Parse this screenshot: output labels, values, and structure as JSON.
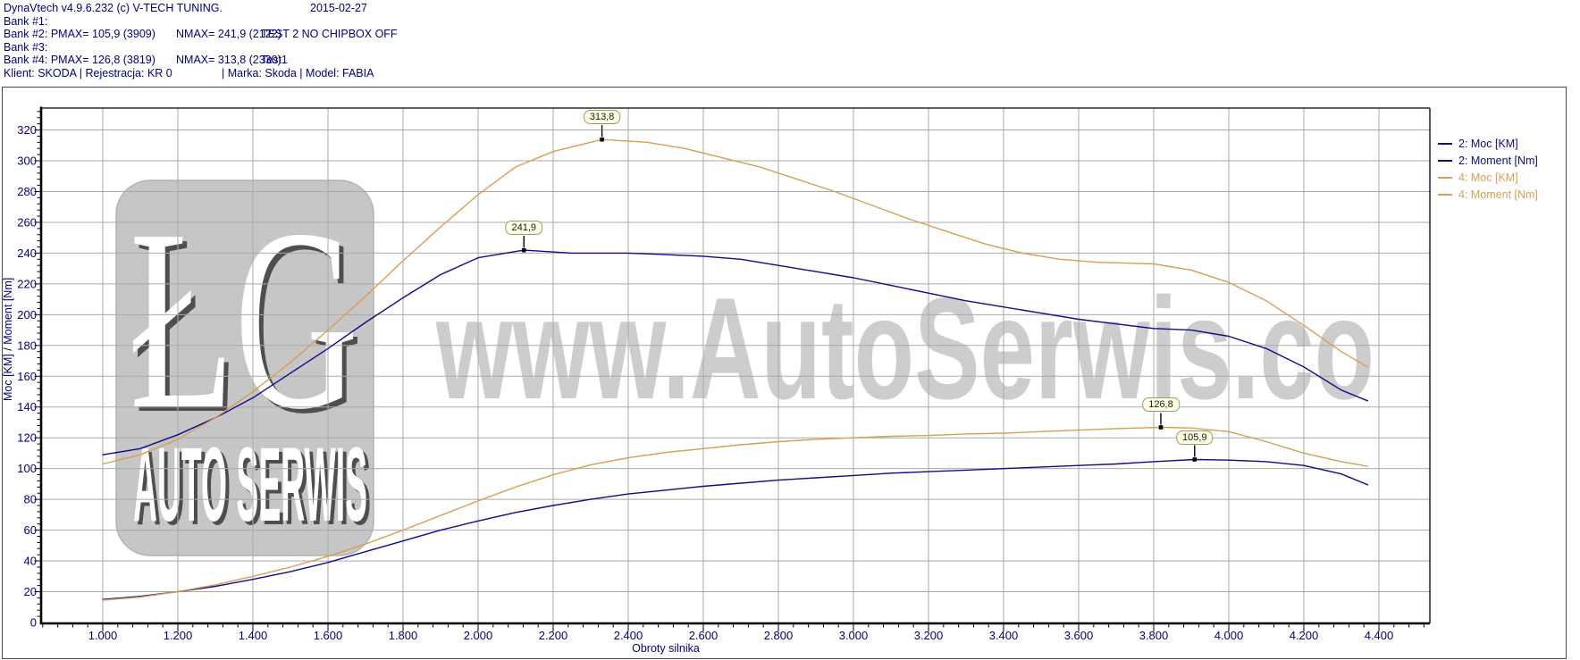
{
  "header": {
    "rows": [
      {
        "segments": [
          {
            "text": "DynaVtech v4.9.6.232 (c) V-TECH TUNING.",
            "x": 4
          },
          {
            "text": "2015-02-27",
            "x": 347
          }
        ]
      },
      {
        "segments": [
          {
            "text": "Bank #1:",
            "x": 4
          }
        ]
      },
      {
        "segments": [
          {
            "text": "Bank #2: PMAX= 105,9 (3909)",
            "x": 4
          },
          {
            "text": "NMAX= 241,9 (2122)",
            "x": 197
          },
          {
            "text": "TEST 2 NO CHIPBOX OFF",
            "x": 292
          }
        ]
      },
      {
        "segments": [
          {
            "text": "Bank #3:",
            "x": 4
          }
        ]
      },
      {
        "segments": [
          {
            "text": "Bank #4: PMAX= 126,8 (3819)",
            "x": 4
          },
          {
            "text": "NMAX= 313,8 (2330)",
            "x": 197
          },
          {
            "text": "Test1",
            "x": 292
          }
        ]
      },
      {
        "segments": [
          {
            "text": "Klient: SKODA | Rejestracja: KR 0",
            "x": 4
          },
          {
            "text": "| Marka: Skoda | Model: FABIA",
            "x": 248
          }
        ]
      }
    ]
  },
  "axes": {
    "x_title": "Obroty silnika",
    "y_title": "Moc [KM] / Moment [Nm]"
  },
  "legend": {
    "items": [
      {
        "label": "2: Moc [KM]",
        "color": "#0d0d8c"
      },
      {
        "label": "2: Moment [Nm]",
        "color": "#0d0d8c"
      },
      {
        "label": "4: Moc [KM]",
        "color": "#d89e54"
      },
      {
        "label": "4: Moment [Nm]",
        "color": "#d89e54"
      }
    ]
  },
  "watermark": {
    "text": "www.AutoSerwis.co",
    "logo_initials": "ŁG",
    "logo_caption": "AUTO SERWIS"
  },
  "colors": {
    "axis_text": "#000080",
    "grid": "#a9a9a9",
    "curve_blue": "#0d0d8c",
    "curve_orange": "#d89e54",
    "annotation_bg": "#ffffe3",
    "watermark_gray": "#cdcdcd",
    "logo_gray": "#c6c6c6"
  },
  "chart_data": {
    "type": "line",
    "title": "",
    "xlabel": "Obroty silnika",
    "ylabel": "Moc [KM] / Moment [Nm]",
    "xlim": [
      836,
      4536
    ],
    "ylim": [
      0,
      334
    ],
    "grid": true,
    "legend_position": "right-outside",
    "x_minor_step": 40,
    "y_minor_step": 4,
    "x_ticks": [
      {
        "v": 1000,
        "label": "1.000"
      },
      {
        "v": 1200,
        "label": "1.200"
      },
      {
        "v": 1400,
        "label": "1.400"
      },
      {
        "v": 1600,
        "label": "1.600"
      },
      {
        "v": 1800,
        "label": "1.800"
      },
      {
        "v": 2000,
        "label": "2.000"
      },
      {
        "v": 2200,
        "label": "2.200"
      },
      {
        "v": 2400,
        "label": "2.400"
      },
      {
        "v": 2600,
        "label": "2.600"
      },
      {
        "v": 2800,
        "label": "2.800"
      },
      {
        "v": 3000,
        "label": "3.000"
      },
      {
        "v": 3200,
        "label": "3.200"
      },
      {
        "v": 3400,
        "label": "3.400"
      },
      {
        "v": 3600,
        "label": "3.600"
      },
      {
        "v": 3800,
        "label": "3.800"
      },
      {
        "v": 4000,
        "label": "4.000"
      },
      {
        "v": 4200,
        "label": "4.200"
      },
      {
        "v": 4400,
        "label": "4.400"
      }
    ],
    "y_ticks": [
      {
        "v": 0,
        "label": "0"
      },
      {
        "v": 20,
        "label": "20"
      },
      {
        "v": 40,
        "label": "40"
      },
      {
        "v": 60,
        "label": "60"
      },
      {
        "v": 80,
        "label": "80"
      },
      {
        "v": 100,
        "label": "100"
      },
      {
        "v": 120,
        "label": "120"
      },
      {
        "v": 140,
        "label": "140"
      },
      {
        "v": 160,
        "label": "160"
      },
      {
        "v": 180,
        "label": "180"
      },
      {
        "v": 200,
        "label": "200"
      },
      {
        "v": 220,
        "label": "220"
      },
      {
        "v": 240,
        "label": "240"
      },
      {
        "v": 260,
        "label": "260"
      },
      {
        "v": 280,
        "label": "280"
      },
      {
        "v": 300,
        "label": "300"
      },
      {
        "v": 320,
        "label": "320"
      }
    ],
    "series": [
      {
        "id": "moment2",
        "name": "2: Moment [Nm]",
        "color": "#0d0d8c",
        "points": [
          [
            1000,
            109
          ],
          [
            1100,
            113
          ],
          [
            1200,
            122
          ],
          [
            1300,
            133
          ],
          [
            1400,
            146
          ],
          [
            1500,
            162
          ],
          [
            1600,
            178
          ],
          [
            1700,
            195
          ],
          [
            1800,
            211
          ],
          [
            1900,
            226
          ],
          [
            2000,
            237
          ],
          [
            2122,
            241.9
          ],
          [
            2250,
            240
          ],
          [
            2400,
            240
          ],
          [
            2500,
            239
          ],
          [
            2600,
            238
          ],
          [
            2700,
            236
          ],
          [
            2800,
            232
          ],
          [
            2900,
            228
          ],
          [
            3000,
            224
          ],
          [
            3100,
            219
          ],
          [
            3200,
            214
          ],
          [
            3300,
            209
          ],
          [
            3400,
            205
          ],
          [
            3500,
            201
          ],
          [
            3600,
            197
          ],
          [
            3700,
            194
          ],
          [
            3800,
            191
          ],
          [
            3900,
            190
          ],
          [
            4000,
            186
          ],
          [
            4100,
            178
          ],
          [
            4200,
            166
          ],
          [
            4300,
            151
          ],
          [
            4370,
            144
          ]
        ]
      },
      {
        "id": "moment4",
        "name": "4: Moment [Nm]",
        "color": "#d89e54",
        "points": [
          [
            1000,
            103
          ],
          [
            1100,
            109
          ],
          [
            1200,
            119
          ],
          [
            1300,
            133
          ],
          [
            1400,
            150
          ],
          [
            1500,
            169
          ],
          [
            1600,
            190
          ],
          [
            1700,
            212
          ],
          [
            1800,
            235
          ],
          [
            1900,
            257
          ],
          [
            2000,
            278
          ],
          [
            2100,
            296
          ],
          [
            2200,
            306
          ],
          [
            2330,
            313.8
          ],
          [
            2450,
            312
          ],
          [
            2550,
            308
          ],
          [
            2650,
            302
          ],
          [
            2750,
            296
          ],
          [
            2850,
            288
          ],
          [
            2950,
            280
          ],
          [
            3050,
            271
          ],
          [
            3150,
            262
          ],
          [
            3250,
            254
          ],
          [
            3350,
            246
          ],
          [
            3450,
            240
          ],
          [
            3550,
            236
          ],
          [
            3650,
            234
          ],
          [
            3800,
            233
          ],
          [
            3900,
            229
          ],
          [
            4000,
            221
          ],
          [
            4100,
            209
          ],
          [
            4200,
            193
          ],
          [
            4300,
            176
          ],
          [
            4370,
            166
          ]
        ]
      },
      {
        "id": "moc2",
        "name": "2: Moc [KM]",
        "color": "#0d0d8c",
        "points": [
          [
            1000,
            15
          ],
          [
            1100,
            17
          ],
          [
            1200,
            20
          ],
          [
            1300,
            23.5
          ],
          [
            1400,
            28
          ],
          [
            1500,
            33
          ],
          [
            1600,
            39
          ],
          [
            1700,
            46
          ],
          [
            1800,
            53
          ],
          [
            1900,
            60
          ],
          [
            2000,
            66
          ],
          [
            2100,
            71.5
          ],
          [
            2200,
            76
          ],
          [
            2300,
            80
          ],
          [
            2400,
            83.5
          ],
          [
            2500,
            86
          ],
          [
            2600,
            88.5
          ],
          [
            2700,
            90.5
          ],
          [
            2800,
            92.5
          ],
          [
            2900,
            94
          ],
          [
            3000,
            95.5
          ],
          [
            3100,
            97
          ],
          [
            3200,
            98
          ],
          [
            3300,
            99
          ],
          [
            3400,
            100
          ],
          [
            3500,
            101
          ],
          [
            3600,
            102
          ],
          [
            3700,
            103
          ],
          [
            3800,
            104.5
          ],
          [
            3909,
            105.9
          ],
          [
            4000,
            105.5
          ],
          [
            4100,
            104.5
          ],
          [
            4200,
            102
          ],
          [
            4300,
            96.5
          ],
          [
            4370,
            89.5
          ]
        ]
      },
      {
        "id": "moc4",
        "name": "4: Moc [KM]",
        "color": "#d89e54",
        "points": [
          [
            1000,
            14.5
          ],
          [
            1100,
            16.5
          ],
          [
            1200,
            20
          ],
          [
            1300,
            24.5
          ],
          [
            1400,
            30
          ],
          [
            1500,
            36
          ],
          [
            1600,
            43
          ],
          [
            1700,
            51
          ],
          [
            1800,
            60
          ],
          [
            1900,
            69.5
          ],
          [
            2000,
            79
          ],
          [
            2100,
            88
          ],
          [
            2200,
            96
          ],
          [
            2300,
            102.5
          ],
          [
            2400,
            107
          ],
          [
            2500,
            110.5
          ],
          [
            2600,
            113
          ],
          [
            2700,
            115.5
          ],
          [
            2800,
            117.5
          ],
          [
            2900,
            119
          ],
          [
            3000,
            120
          ],
          [
            3100,
            121
          ],
          [
            3200,
            121.5
          ],
          [
            3300,
            122.5
          ],
          [
            3400,
            123
          ],
          [
            3500,
            124
          ],
          [
            3600,
            125
          ],
          [
            3700,
            126
          ],
          [
            3819,
            126.8
          ],
          [
            3900,
            126.4
          ],
          [
            4000,
            124
          ],
          [
            4100,
            117.5
          ],
          [
            4200,
            110
          ],
          [
            4300,
            104.5
          ],
          [
            4370,
            101.5
          ]
        ]
      }
    ],
    "annotations": [
      {
        "text": "313,8",
        "series": "moment4",
        "rpm": 2330,
        "value": 313.8
      },
      {
        "text": "241,9",
        "series": "moment2",
        "rpm": 2122,
        "value": 241.9
      },
      {
        "text": "126,8",
        "series": "moc4",
        "rpm": 3819,
        "value": 126.8
      },
      {
        "text": "105,9",
        "series": "moc2",
        "rpm": 3909,
        "value": 105.9
      }
    ]
  }
}
